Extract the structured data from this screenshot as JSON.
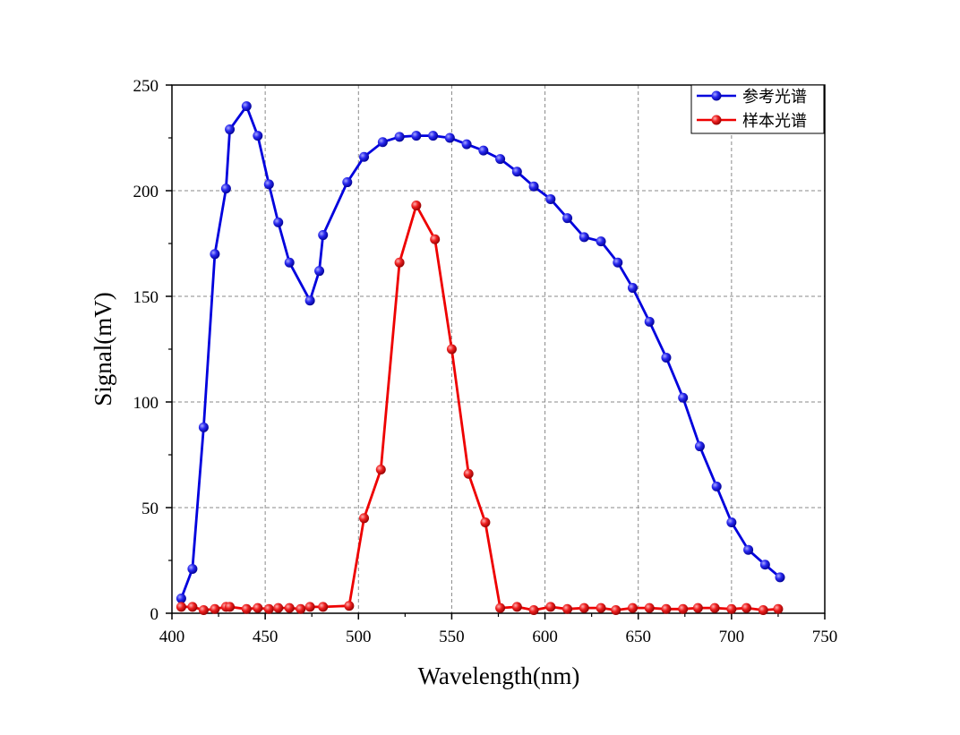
{
  "chart_data": {
    "type": "line",
    "title": "",
    "xlabel": "Wavelength(nm)",
    "ylabel": "Signal(mV)",
    "xlim": [
      400,
      750
    ],
    "ylim": [
      0,
      250
    ],
    "xticks": [
      400,
      450,
      500,
      550,
      600,
      650,
      700,
      750
    ],
    "yticks": [
      0,
      50,
      100,
      150,
      200,
      250
    ],
    "grid": true,
    "legend_position": "top-right",
    "series": [
      {
        "name": "参考光谱",
        "color": "#0000dd",
        "x": [
          405,
          411,
          417,
          423,
          429,
          431,
          440,
          446,
          452,
          457,
          463,
          474,
          479,
          481,
          494,
          503,
          513,
          522,
          531,
          540,
          549,
          558,
          567,
          576,
          585,
          594,
          603,
          612,
          621,
          630,
          639,
          647,
          656,
          665,
          674,
          683,
          692,
          700,
          709,
          718,
          726
        ],
        "y": [
          7,
          21,
          88,
          170,
          201,
          229,
          240,
          226,
          203,
          185,
          166,
          148,
          162,
          179,
          204,
          216,
          223,
          225.5,
          226,
          226,
          225,
          222,
          219,
          215,
          209,
          202,
          196,
          187,
          178,
          176,
          166,
          154,
          138,
          121,
          102,
          79,
          60,
          43,
          30,
          23,
          17
        ]
      },
      {
        "name": "样本光谱",
        "color": "#ee0000",
        "x": [
          405,
          411,
          417,
          423,
          429,
          431,
          440,
          446,
          452,
          457,
          463,
          469,
          474,
          481,
          495,
          503,
          512,
          522,
          531,
          541,
          550,
          559,
          568,
          576,
          585,
          594,
          603,
          612,
          621,
          630,
          638,
          647,
          656,
          665,
          674,
          682,
          691,
          700,
          708,
          717,
          725
        ],
        "y": [
          3,
          3,
          1.5,
          2,
          3,
          3,
          2,
          2.5,
          2,
          2.5,
          2.5,
          2,
          3,
          3,
          3.5,
          45,
          68,
          166,
          193,
          177,
          125,
          66,
          43,
          2.5,
          3,
          1.5,
          3,
          2,
          2.5,
          2.5,
          1.5,
          2.5,
          2.5,
          2,
          2,
          2.5,
          2.5,
          2,
          2.5,
          1.5,
          2
        ]
      }
    ]
  }
}
